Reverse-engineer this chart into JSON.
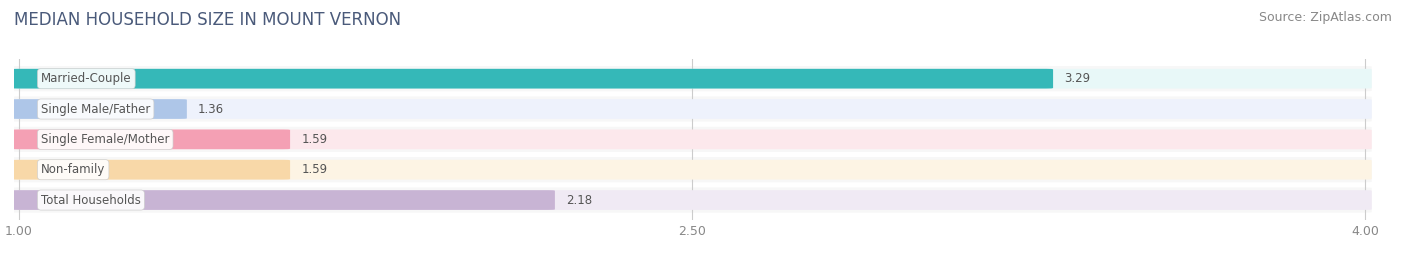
{
  "title": "MEDIAN HOUSEHOLD SIZE IN MOUNT VERNON",
  "source": "Source: ZipAtlas.com",
  "categories": [
    "Married-Couple",
    "Single Male/Father",
    "Single Female/Mother",
    "Non-family",
    "Total Households"
  ],
  "values": [
    3.29,
    1.36,
    1.59,
    1.59,
    2.18
  ],
  "bar_colors": [
    "#35b8b8",
    "#aec6e8",
    "#f4a0b4",
    "#f8d8a8",
    "#c8b4d4"
  ],
  "bar_bg_colors": [
    "#e8f8f8",
    "#eef2fc",
    "#fce8ec",
    "#fdf4e4",
    "#f0eaf4"
  ],
  "xmin": 1.0,
  "xmax": 4.0,
  "xticks": [
    1.0,
    2.5,
    4.0
  ],
  "xtick_labels": [
    "1.00",
    "2.50",
    "4.00"
  ],
  "title_fontsize": 12,
  "source_fontsize": 9,
  "label_fontsize": 8.5,
  "value_fontsize": 8.5,
  "tick_fontsize": 9,
  "background_color": "#ffffff",
  "bar_row_bg": "#f5f5f5",
  "title_color": "#4a5a7a",
  "label_color": "#555555",
  "value_color": "#555555",
  "tick_color": "#888888",
  "grid_color": "#cccccc"
}
